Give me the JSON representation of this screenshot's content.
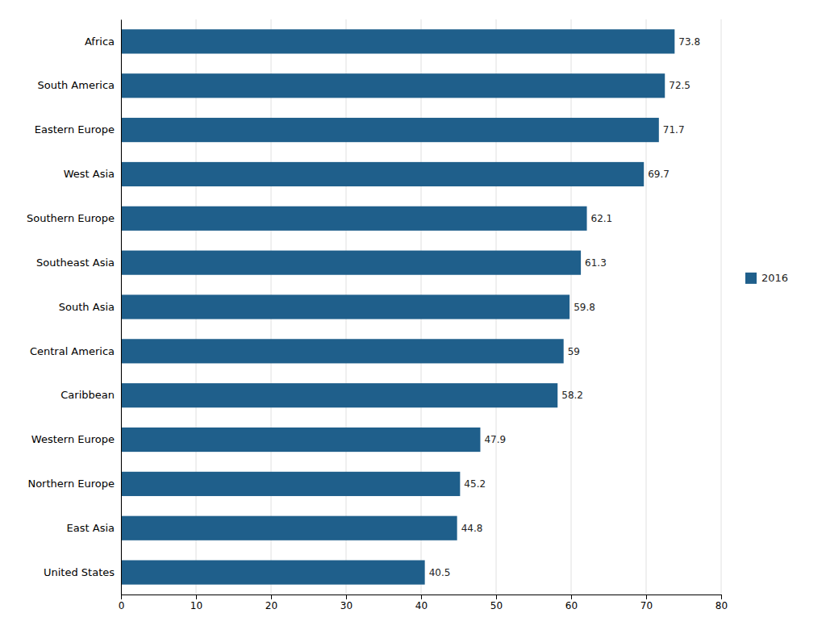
{
  "chart_data": {
    "type": "bar",
    "orientation": "horizontal",
    "categories": [
      "Africa",
      "South America",
      "Eastern Europe",
      "West Asia",
      "Southern Europe",
      "Southeast Asia",
      "South Asia",
      "Central America",
      "Caribbean",
      "Western Europe",
      "Northern Europe",
      "East Asia",
      "United States"
    ],
    "series": [
      {
        "name": "2016",
        "color": "#1F5F8B",
        "values": [
          73.8,
          72.5,
          71.7,
          69.7,
          62.1,
          61.3,
          59.8,
          59,
          58.2,
          47.9,
          45.2,
          44.8,
          40.5
        ]
      }
    ],
    "xlim": [
      0,
      80
    ],
    "xticks": [
      0,
      10,
      20,
      30,
      40,
      50,
      60,
      70,
      80
    ],
    "grid": true,
    "data_labels": true,
    "legend": "right"
  }
}
